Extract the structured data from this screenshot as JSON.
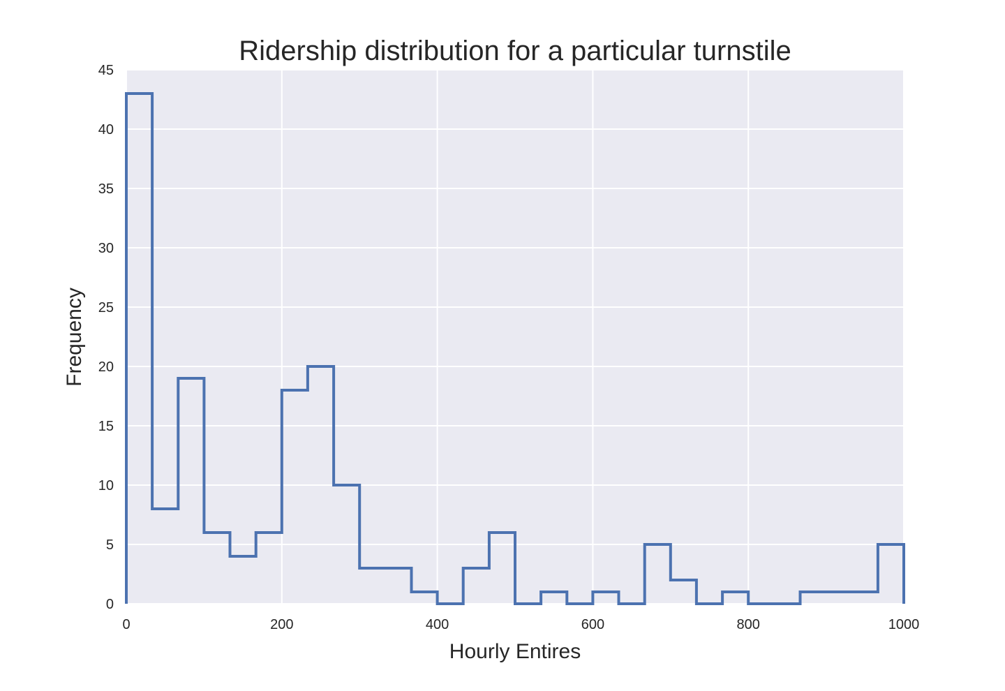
{
  "chart_data": {
    "type": "histogram",
    "title": "Ridership distribution for a particular turnstile",
    "xlabel": "Hourly Entires",
    "ylabel": "Frequency",
    "xlim": [
      0,
      1000
    ],
    "ylim": [
      0,
      45
    ],
    "xticks": [
      0,
      200,
      400,
      600,
      800,
      1000
    ],
    "yticks": [
      0,
      5,
      10,
      15,
      20,
      25,
      30,
      35,
      40,
      45
    ],
    "grid": true,
    "histtype": "step",
    "bin_edges": [
      0,
      33.3,
      66.7,
      100,
      133.3,
      166.7,
      200,
      233.3,
      266.7,
      300,
      333.3,
      366.7,
      400,
      433.3,
      466.7,
      500,
      533.3,
      566.7,
      600,
      633.3,
      666.7,
      700,
      733.3,
      766.7,
      800,
      833.3,
      866.7,
      900,
      933.3,
      966.7,
      1000
    ],
    "values": [
      43,
      8,
      19,
      6,
      4,
      6,
      18,
      20,
      10,
      3,
      3,
      1,
      0,
      3,
      6,
      0,
      1,
      0,
      1,
      0,
      5,
      2,
      0,
      1,
      0,
      0,
      1,
      1,
      1,
      5
    ],
    "colors": {
      "line": "#4c72b0",
      "plot_background": "#eaeaf2",
      "grid": "#ffffff",
      "text": "#262626"
    }
  }
}
